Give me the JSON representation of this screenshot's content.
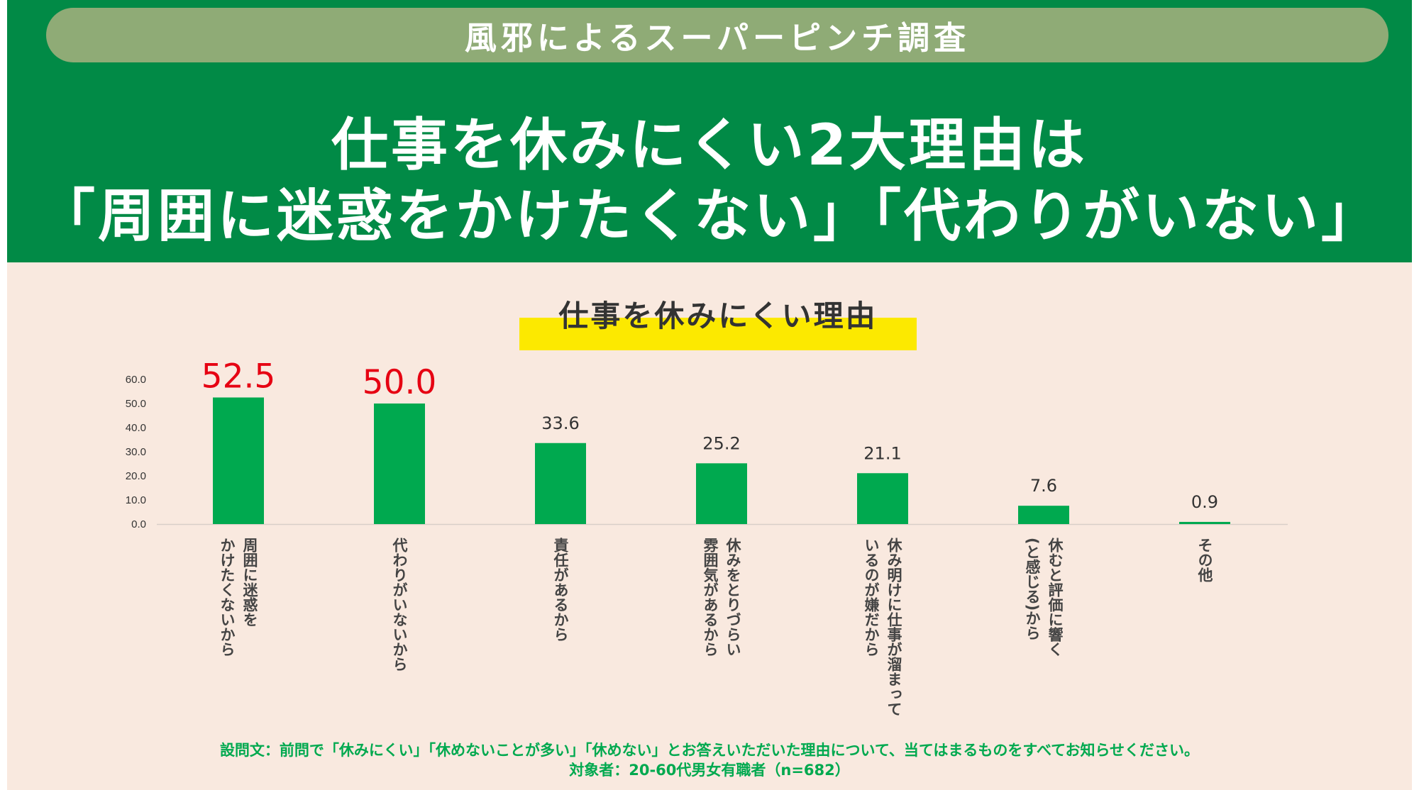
{
  "banner": {
    "survey_label": "風邪によるスーパーピンチ調査",
    "headline_line1": "仕事を休みにくい2大理由は",
    "headline_line2": "「周囲に迷惑をかけたくない」「代わりがいない」"
  },
  "colors": {
    "header_green": "#018a46",
    "pill_green": "#8fab76",
    "bar_green": "#00a94f",
    "highlight_yellow": "#fce900",
    "emphasis_red": "#e60012",
    "background": "#f9e9df"
  },
  "chart_data": {
    "type": "bar",
    "title": "仕事を休みにくい理由",
    "categories": [
      "周囲に迷惑を\nかけたくないから",
      "代わりがいないから",
      "責任があるから",
      "休みをとりづらい\n雰囲気があるから",
      "休み明けに仕事が溜まって\nいるのが嫌だから",
      "休むと評価に響く\n(と感じる)から",
      "その他"
    ],
    "values": [
      52.5,
      50.0,
      33.6,
      25.2,
      21.1,
      7.6,
      0.9
    ],
    "value_labels": [
      "52.5",
      "50.0",
      "33.6",
      "25.2",
      "21.1",
      "7.6",
      "0.9"
    ],
    "highlighted": [
      true,
      true,
      false,
      false,
      false,
      false,
      false
    ],
    "yticks": [
      "0.0",
      "10.0",
      "20.0",
      "30.0",
      "40.0",
      "50.0",
      "60.0"
    ],
    "ylim": [
      0,
      60
    ],
    "xlabel": "",
    "ylabel": "",
    "grid": false,
    "legend": "none"
  },
  "footnote": {
    "question": "設問文：前問で「休みにくい」「休めないことが多い」「休めない」とお答えいただいた理由について、当てはまるものをすべてお知らせください。",
    "target": "対象者：20-60代男女有職者（n=682）"
  }
}
